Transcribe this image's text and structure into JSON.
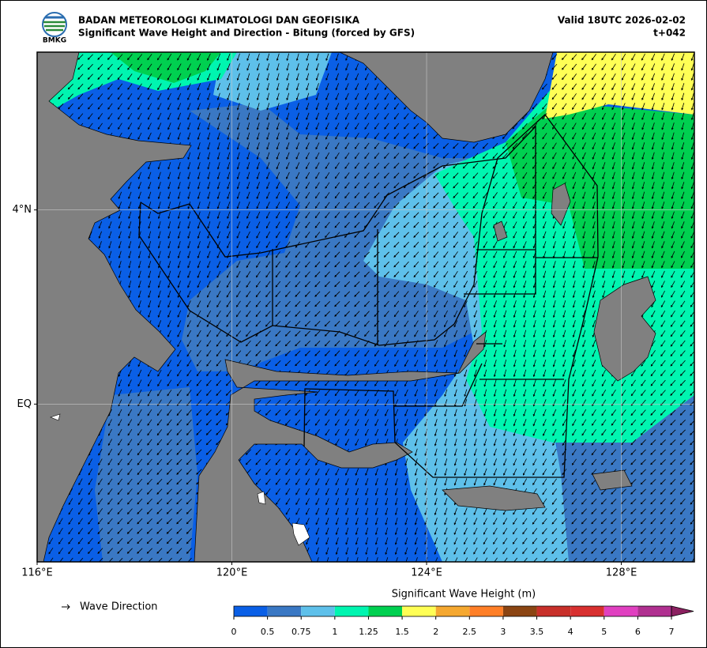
{
  "header": {
    "agency": "BADAN METEOROLOGI KLIMATOLOGI DAN GEOFISIKA",
    "title": "Significant Wave Height and Direction - Bitung (forced by GFS)",
    "valid": "Valid 18UTC 2026-02-02",
    "lead": "t+042",
    "logo_text": "BMKG"
  },
  "map": {
    "lonlim": [
      116,
      129.5
    ],
    "latlim": [
      -3.25,
      7.25
    ],
    "lon_ticks": [
      {
        "value": 116,
        "label": "116°E"
      },
      {
        "value": 120,
        "label": "120°E"
      },
      {
        "value": 124,
        "label": "124°E"
      },
      {
        "value": 128,
        "label": "128°E"
      }
    ],
    "lat_ticks": [
      {
        "value": 4,
        "label": "4°N"
      },
      {
        "value": 0,
        "label": "EQ"
      }
    ],
    "grid": true
  },
  "legend": {
    "label": "Wave Direction"
  },
  "colorbar": {
    "title": "Significant Wave Height (m)",
    "ticks": [
      0,
      0.5,
      0.75,
      1,
      1.25,
      1.5,
      2,
      2.5,
      3,
      3.5,
      4,
      5,
      6,
      7
    ],
    "colors": [
      "#0a5fe6",
      "#3a78c4",
      "#5ec0ea",
      "#00f5b0",
      "#00d050",
      "#ffff55",
      "#f5a830",
      "#ff7f27",
      "#8b4513",
      "#c8302a",
      "#d83030",
      "#e040c0",
      "#b03090",
      "#8b2060"
    ]
  }
}
